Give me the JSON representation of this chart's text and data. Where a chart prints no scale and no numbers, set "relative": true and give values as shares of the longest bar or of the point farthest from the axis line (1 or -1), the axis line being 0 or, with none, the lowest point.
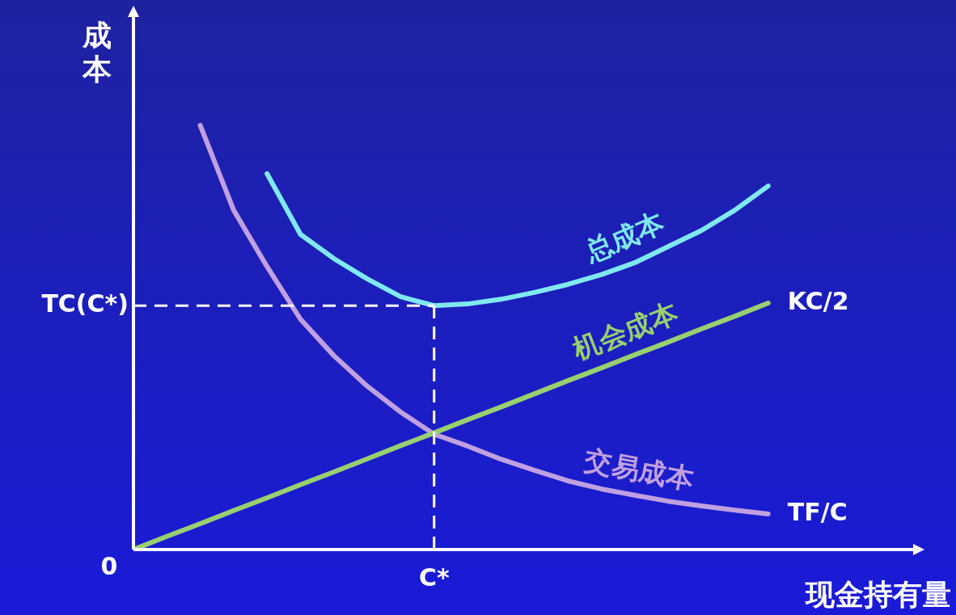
{
  "chart_data": {
    "type": "line",
    "relative": true,
    "xlabel": "现金持有量",
    "ylabel": "成本",
    "categories": [
      null,
      null,
      null,
      null,
      null,
      null,
      null,
      null,
      null,
      null,
      null,
      null,
      null,
      null,
      null,
      null,
      null,
      null,
      null,
      null
    ],
    "legend": false,
    "marker": "none",
    "line_style": "solid",
    "series": [
      {
        "name": "总成本",
        "color": "#80e8f0",
        "values": [
          null,
          null,
          null,
          null,
          0.886,
          0.743,
          0.686,
          0.638,
          0.596,
          0.575,
          0.579,
          0.59,
          0.606,
          0.625,
          0.648,
          0.676,
          0.714,
          0.752,
          0.8,
          0.857
        ]
      },
      {
        "name": "机会成本",
        "color": "#98d070",
        "values": [
          0,
          0.031,
          0.061,
          0.092,
          0.122,
          0.153,
          0.183,
          0.214,
          0.245,
          0.275,
          0.306,
          0.336,
          0.367,
          0.398,
          0.428,
          0.459,
          0.489,
          0.52,
          0.55,
          0.581
        ]
      },
      {
        "name": "交易成本",
        "color": "#c0a0e0",
        "values": [
          null,
          null,
          1,
          0.8,
          0.667,
          0.543,
          0.457,
          0.385,
          0.324,
          0.272,
          0.244,
          0.213,
          0.187,
          0.162,
          0.143,
          0.128,
          0.114,
          0.103,
          0.093,
          0.084
        ]
      }
    ],
    "annotations": [
      "0",
      "TC(C*)",
      "C*",
      "KC/2",
      "TF/C"
    ]
  }
}
